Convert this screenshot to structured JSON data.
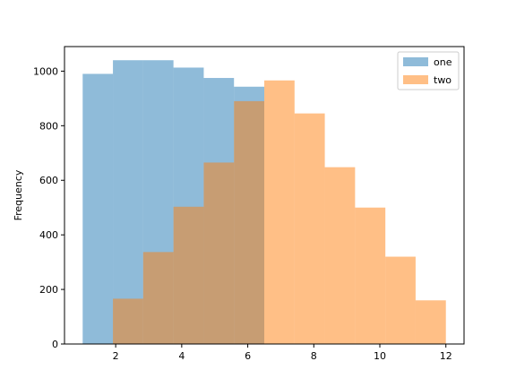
{
  "chart_data": {
    "type": "histogram",
    "title": "",
    "xlabel": "",
    "ylabel": "Frequency",
    "xlim": [
      0.45,
      12.55
    ],
    "ylim": [
      0,
      1090
    ],
    "x_ticks": [
      2,
      4,
      6,
      8,
      10,
      12
    ],
    "y_ticks": [
      0,
      200,
      400,
      600,
      800,
      1000
    ],
    "grid": false,
    "legend_position": "top-right",
    "series": [
      {
        "name": "one",
        "color": "#1f77b4",
        "opacity": 0.5,
        "bin_edges": [
          1.0,
          1.917,
          2.833,
          3.75,
          4.667,
          5.583,
          6.5
        ],
        "values": [
          990,
          1040,
          1040,
          1013,
          975,
          943
        ]
      },
      {
        "name": "two",
        "color": "#ff7f0e",
        "opacity": 0.5,
        "bin_edges": [
          1.917,
          2.833,
          3.75,
          4.667,
          5.583,
          6.5,
          7.417,
          8.333,
          9.25,
          10.167,
          11.083,
          12.0
        ],
        "values": [
          166,
          337,
          503,
          665,
          890,
          966,
          845,
          648,
          500,
          320,
          160
        ]
      }
    ]
  }
}
